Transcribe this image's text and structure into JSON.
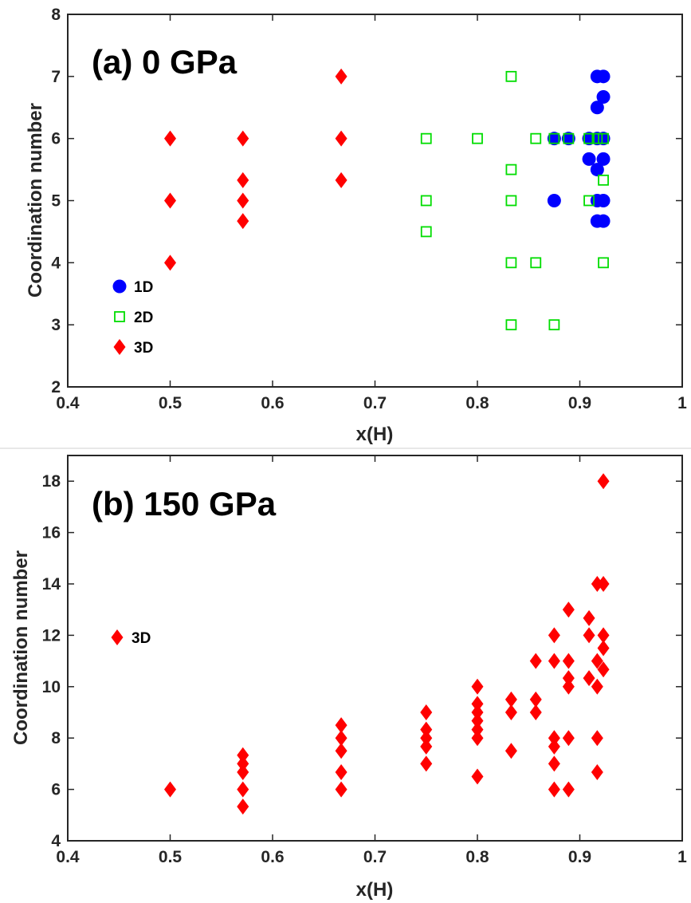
{
  "colors": {
    "series_1D": "#0000FF",
    "series_2D": "#00DD00",
    "series_3D": "#FF0000",
    "axis": "#262626"
  },
  "chart_data": [
    {
      "type": "scatter",
      "title": "(a) 0 GPa",
      "xlabel": "x(H)",
      "ylabel": "Coordination number",
      "xlim": [
        0.4,
        1.0
      ],
      "ylim": [
        2,
        8
      ],
      "xticks": [
        0.4,
        0.5,
        0.6,
        0.7,
        0.8,
        0.9,
        1.0
      ],
      "xtick_labels": [
        "0.4",
        "0.5",
        "0.6",
        "0.7",
        "0.8",
        "0.9",
        "1"
      ],
      "yticks": [
        2,
        3,
        4,
        5,
        6,
        7,
        8
      ],
      "ytick_labels": [
        "2",
        "3",
        "4",
        "5",
        "6",
        "7",
        "8"
      ],
      "grid": false,
      "legend": "left",
      "series": [
        {
          "name": "1D",
          "marker": "circle",
          "color": "#0000FF",
          "points": [
            [
              0.875,
              5.0
            ],
            [
              0.875,
              6.0
            ],
            [
              0.889,
              6.0
            ],
            [
              0.909,
              5.67
            ],
            [
              0.909,
              6.0
            ],
            [
              0.917,
              7.0
            ],
            [
              0.917,
              6.5
            ],
            [
              0.917,
              5.5
            ],
            [
              0.917,
              4.67
            ],
            [
              0.917,
              5.0
            ],
            [
              0.917,
              6.0
            ],
            [
              0.923,
              7.0
            ],
            [
              0.923,
              6.67
            ],
            [
              0.923,
              5.67
            ],
            [
              0.923,
              5.0
            ],
            [
              0.923,
              4.67
            ],
            [
              0.923,
              6.0
            ]
          ]
        },
        {
          "name": "2D",
          "marker": "square",
          "color": "#00DD00",
          "points": [
            [
              0.75,
              6.0
            ],
            [
              0.75,
              5.0
            ],
            [
              0.75,
              4.5
            ],
            [
              0.8,
              6.0
            ],
            [
              0.833,
              7.0
            ],
            [
              0.833,
              5.5
            ],
            [
              0.833,
              5.0
            ],
            [
              0.833,
              4.0
            ],
            [
              0.833,
              3.0
            ],
            [
              0.857,
              6.0
            ],
            [
              0.857,
              4.0
            ],
            [
              0.875,
              6.0
            ],
            [
              0.875,
              3.0
            ],
            [
              0.889,
              6.0
            ],
            [
              0.909,
              6.0
            ],
            [
              0.909,
              5.0
            ],
            [
              0.917,
              6.0
            ],
            [
              0.923,
              6.0
            ],
            [
              0.923,
              5.33
            ],
            [
              0.923,
              4.0
            ]
          ]
        },
        {
          "name": "3D",
          "marker": "diamond",
          "color": "#FF0000",
          "points": [
            [
              0.5,
              6.0
            ],
            [
              0.5,
              5.0
            ],
            [
              0.5,
              4.0
            ],
            [
              0.571,
              6.0
            ],
            [
              0.571,
              5.33
            ],
            [
              0.571,
              5.0
            ],
            [
              0.571,
              4.67
            ],
            [
              0.667,
              7.0
            ],
            [
              0.667,
              6.0
            ],
            [
              0.667,
              5.33
            ]
          ]
        }
      ]
    },
    {
      "type": "scatter",
      "title": "(b) 150 GPa",
      "xlabel": "x(H)",
      "ylabel": "Coordination number",
      "xlim": [
        0.4,
        1.0
      ],
      "ylim": [
        4,
        19
      ],
      "xticks": [
        0.4,
        0.5,
        0.6,
        0.7,
        0.8,
        0.9,
        1.0
      ],
      "xtick_labels": [
        "0.4",
        "0.5",
        "0.6",
        "0.7",
        "0.8",
        "0.9",
        "1"
      ],
      "yticks": [
        4,
        6,
        8,
        10,
        12,
        14,
        16,
        18
      ],
      "ytick_labels": [
        "4",
        "6",
        "8",
        "10",
        "12",
        "14",
        "16",
        "18"
      ],
      "grid": false,
      "legend": "left",
      "series": [
        {
          "name": "3D",
          "marker": "diamond",
          "color": "#FF0000",
          "points": [
            [
              0.5,
              6.0
            ],
            [
              0.571,
              7.33
            ],
            [
              0.571,
              7.0
            ],
            [
              0.571,
              6.67
            ],
            [
              0.571,
              6.0
            ],
            [
              0.571,
              5.33
            ],
            [
              0.667,
              8.5
            ],
            [
              0.667,
              8.0
            ],
            [
              0.667,
              7.5
            ],
            [
              0.667,
              6.67
            ],
            [
              0.667,
              6.0
            ],
            [
              0.75,
              9.0
            ],
            [
              0.75,
              8.33
            ],
            [
              0.75,
              8.0
            ],
            [
              0.75,
              7.67
            ],
            [
              0.75,
              7.0
            ],
            [
              0.8,
              10.0
            ],
            [
              0.8,
              9.33
            ],
            [
              0.8,
              9.0
            ],
            [
              0.8,
              8.67
            ],
            [
              0.8,
              8.33
            ],
            [
              0.8,
              8.0
            ],
            [
              0.8,
              6.5
            ],
            [
              0.833,
              9.5
            ],
            [
              0.833,
              9.0
            ],
            [
              0.833,
              7.5
            ],
            [
              0.857,
              11.0
            ],
            [
              0.857,
              9.5
            ],
            [
              0.857,
              9.0
            ],
            [
              0.875,
              12.0
            ],
            [
              0.875,
              11.0
            ],
            [
              0.875,
              8.0
            ],
            [
              0.875,
              7.67
            ],
            [
              0.875,
              7.0
            ],
            [
              0.875,
              6.0
            ],
            [
              0.889,
              13.0
            ],
            [
              0.889,
              11.0
            ],
            [
              0.889,
              10.33
            ],
            [
              0.889,
              10.0
            ],
            [
              0.889,
              8.0
            ],
            [
              0.889,
              6.0
            ],
            [
              0.909,
              12.67
            ],
            [
              0.909,
              12.0
            ],
            [
              0.909,
              10.33
            ],
            [
              0.917,
              14.0
            ],
            [
              0.917,
              11.0
            ],
            [
              0.917,
              10.0
            ],
            [
              0.917,
              8.0
            ],
            [
              0.917,
              6.67
            ],
            [
              0.923,
              18.0
            ],
            [
              0.923,
              14.0
            ],
            [
              0.923,
              12.0
            ],
            [
              0.923,
              11.5
            ],
            [
              0.923,
              10.67
            ]
          ]
        }
      ]
    }
  ]
}
